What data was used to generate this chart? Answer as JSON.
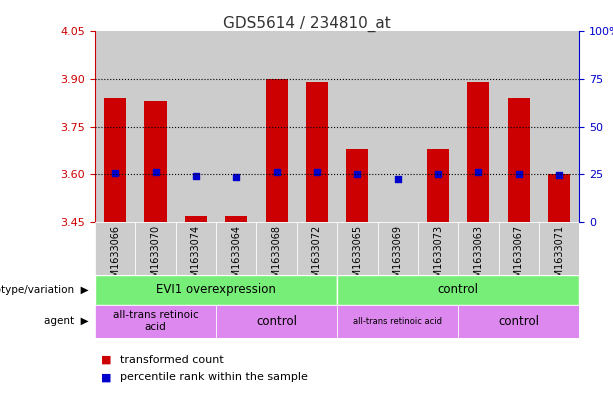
{
  "title": "GDS5614 / 234810_at",
  "samples": [
    "GSM1633066",
    "GSM1633070",
    "GSM1633074",
    "GSM1633064",
    "GSM1633068",
    "GSM1633072",
    "GSM1633065",
    "GSM1633069",
    "GSM1633073",
    "GSM1633063",
    "GSM1633067",
    "GSM1633071"
  ],
  "red_values": [
    3.84,
    3.83,
    3.47,
    3.47,
    3.9,
    3.89,
    3.68,
    3.45,
    3.68,
    3.89,
    3.84,
    3.6
  ],
  "blue_values": [
    3.605,
    3.608,
    3.594,
    3.592,
    3.608,
    3.607,
    3.602,
    3.587,
    3.601,
    3.607,
    3.602,
    3.599
  ],
  "ymin": 3.45,
  "ymax": 4.05,
  "yticks_left": [
    3.45,
    3.6,
    3.75,
    3.9,
    4.05
  ],
  "yticks_right_labels": [
    "0",
    "25",
    "50",
    "75",
    "100%"
  ],
  "grid_lines": [
    3.6,
    3.75,
    3.9
  ],
  "bar_color": "#cc0000",
  "dot_color": "#0000cc",
  "bar_bottom": 3.45,
  "bar_width": 0.55,
  "group1_label": "EVI1 overexpression",
  "group2_label": "control",
  "agent1a_label": "all-trans retinoic\nacid",
  "agent1b_label": "control",
  "agent2a_label": "all-trans retinoic acid",
  "agent2b_label": "control",
  "genotype_label": "genotype/variation",
  "agent_label": "agent",
  "legend1": "transformed count",
  "legend2": "percentile rank within the sample",
  "group_color": "#77ee77",
  "agent_color": "#dd88ee",
  "bg_color": "#cccccc",
  "title_color": "#333333",
  "left_axis_color": "#cc0000",
  "right_axis_color": "#0000cc"
}
